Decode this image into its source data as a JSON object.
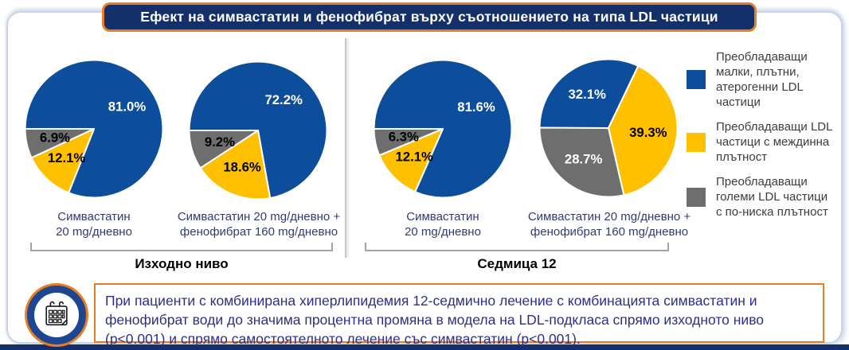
{
  "title": "Ефект на симвастатин и фенофибрат върху съотношението на типа LDL частици",
  "colors": {
    "pie_blue": "#0d4e9c",
    "pie_yellow": "#ffc000",
    "pie_gray": "#6e6e6e",
    "accent_orange": "#e87d25",
    "title_navy": "#14306b",
    "callout_text_navy": "#2f2e8d",
    "caption_navy": "#333a74"
  },
  "legend": {
    "position": "right",
    "items": [
      {
        "color": "blue",
        "label": "Преобладаващи\nмалки, плътни,\nатерогенни LDL\nчастици"
      },
      {
        "color": "yellow",
        "label": "Преобладаващи LDL\nчастици с междинна\nплътност"
      },
      {
        "color": "gray",
        "label": "Преобладаващи\nголеми LDL частици\nс по-ниска плътност"
      }
    ]
  },
  "chart_data": [
    {
      "type": "pie",
      "group": "Изходно ниво",
      "treatment": "Симвастатин\n20 mg/дневно",
      "slices": [
        {
          "name": "Преобладаващи малки, плътни, атерогенни LDL частици",
          "pct": 81.0,
          "color": "blue"
        },
        {
          "name": "Преобладаващи LDL частици с междинна плътност",
          "pct": 12.1,
          "color": "yellow"
        },
        {
          "name": "Преобладаващи големи LDL частици с по-ниска плътност",
          "pct": 6.9,
          "color": "gray"
        }
      ]
    },
    {
      "type": "pie",
      "group": "Изходно ниво",
      "treatment": "Симвастатин 20 mg/дневно +\nфенофибрат 160 mg/дневно",
      "slices": [
        {
          "name": "Преобладаващи малки, плътни, атерогенни LDL частици",
          "pct": 72.2,
          "color": "blue"
        },
        {
          "name": "Преобладаващи LDL частици с междинна плътност",
          "pct": 18.6,
          "color": "yellow"
        },
        {
          "name": "Преобладаващи големи LDL частици с по-ниска плътност",
          "pct": 9.2,
          "color": "gray"
        }
      ]
    },
    {
      "type": "pie",
      "group": "Седмица 12",
      "treatment": "Симвастатин\n20 mg/дневно",
      "slices": [
        {
          "name": "Преобладаващи малки, плътни, атерогенни LDL частици",
          "pct": 81.6,
          "color": "blue"
        },
        {
          "name": "Преобладаващи LDL частици с междинна плътност",
          "pct": 12.1,
          "color": "yellow"
        },
        {
          "name": "Преобладаващи големи LDL частици с по-ниска плътност",
          "pct": 6.3,
          "color": "gray"
        }
      ]
    },
    {
      "type": "pie",
      "group": "Седмица 12",
      "treatment": "Симвастатин 20 mg/дневно +\nфенофибрат 160 mg/дневно",
      "slices": [
        {
          "name": "Преобладаващи малки, плътни, атерогенни LDL частици",
          "pct": 32.1,
          "color": "blue"
        },
        {
          "name": "Преобладаващи LDL частици с междинна плътност",
          "pct": 39.3,
          "color": "yellow"
        },
        {
          "name": "Преобладаващи големи LDL частици с по-ниска плътност",
          "pct": 28.7,
          "color": "gray"
        }
      ]
    }
  ],
  "callout": {
    "icon": "calendar-icon",
    "text": "При пациенти с комбинирана хиперлипидемия 12-седмично лечение с комбинацията симвастатин и фенофибрат води до значима процентна промяна в модела на LDL-подкласа спрямо изходното ниво (p<0.001) и спрямо самостоятелното лечение със симвастатин (p<0.001)."
  }
}
